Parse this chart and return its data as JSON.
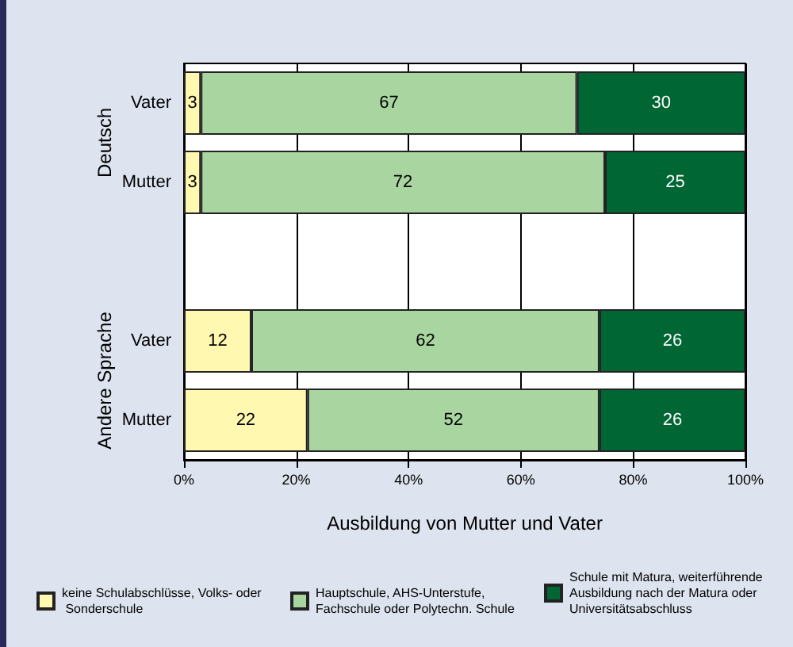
{
  "chart_data": {
    "type": "bar",
    "orientation": "horizontal",
    "stacked": true,
    "xlabel": "Ausbildung von Mutter und Vater",
    "categories": [
      "Vater",
      "Mutter",
      null,
      "Vater",
      "Mutter"
    ],
    "series": [
      {
        "name": "keine Schulabschlüsse, Volks- oder Sonderschule",
        "color": "#fff8b0",
        "values": [
          3,
          3,
          null,
          12,
          22
        ]
      },
      {
        "name": "Hauptschule, AHS-Unterstufe, Fachschule oder Polytechn. Schule",
        "color": "#a8d5a0",
        "values": [
          67,
          72,
          null,
          62,
          52
        ]
      },
      {
        "name": "Schule mit Matura, weiterführende Ausbildung nach der Matura oder Universitätsabschluss",
        "color": "#006633",
        "values": [
          30,
          25,
          null,
          26,
          26
        ]
      }
    ],
    "xlim": [
      0,
      100
    ],
    "xticks": [
      {
        "value": 0,
        "label": "0%"
      },
      {
        "value": 20,
        "label": "20%"
      },
      {
        "value": 40,
        "label": "40%"
      },
      {
        "value": 60,
        "label": "60%"
      },
      {
        "value": 80,
        "label": "80%"
      },
      {
        "value": 100,
        "label": "100%"
      }
    ],
    "grid": "x",
    "data_labels": true,
    "legend": "bottom",
    "annotations": [
      "Deutsch",
      "Andere Sprache"
    ]
  }
}
